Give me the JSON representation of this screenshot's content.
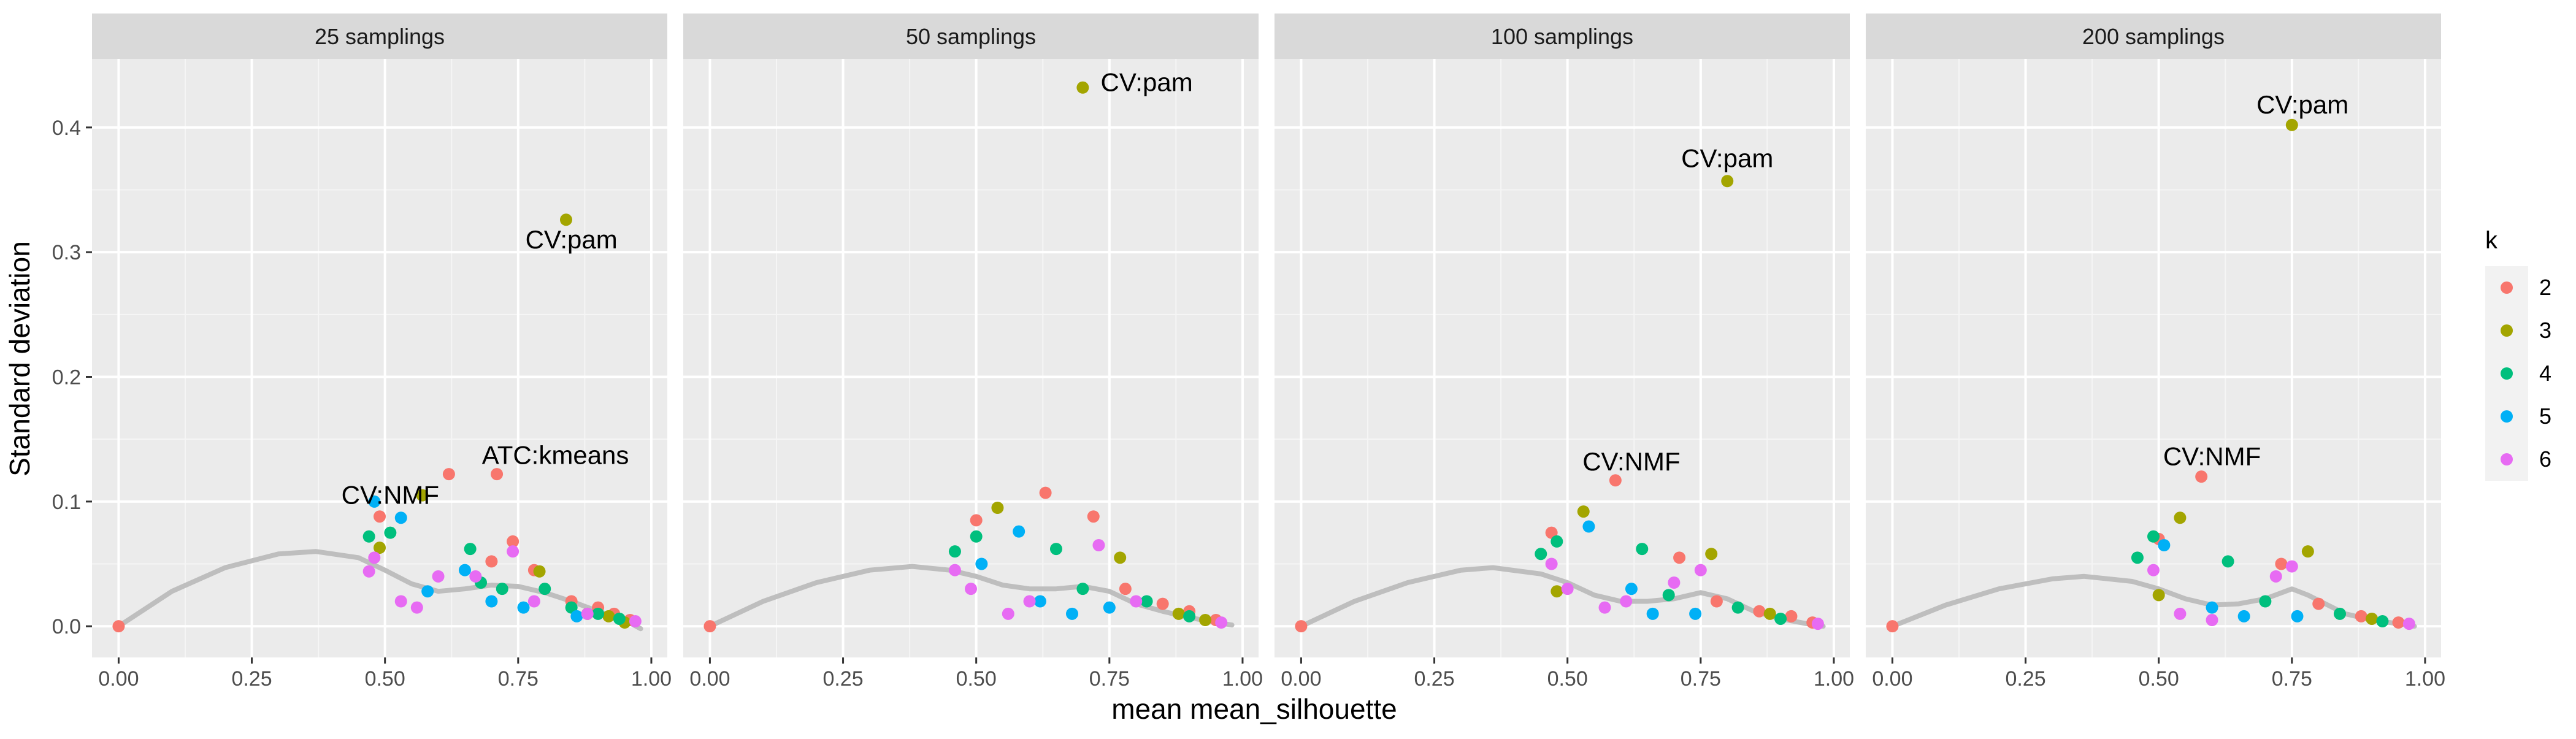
{
  "chart_data": {
    "type": "scatter",
    "xlabel": "mean mean_silhouette",
    "ylabel": "Standard deviation",
    "xlim": [
      -0.05,
      1.03
    ],
    "ylim": [
      -0.025,
      0.455
    ],
    "x_ticks": [
      0,
      0.25,
      0.5,
      0.75,
      1
    ],
    "x_tick_labels": [
      "0.00",
      "0.25",
      "0.50",
      "0.75",
      "1.00"
    ],
    "y_ticks": [
      0,
      0.1,
      0.2,
      0.3,
      0.4
    ],
    "y_tick_labels": [
      "0.0",
      "0.1",
      "0.2",
      "0.3",
      "0.4"
    ],
    "grid": true,
    "legend": {
      "title": "k",
      "placement": "right",
      "entries": [
        {
          "label": "2",
          "color": "#F8766D"
        },
        {
          "label": "3",
          "color": "#A3A500"
        },
        {
          "label": "4",
          "color": "#00BF7D"
        },
        {
          "label": "5",
          "color": "#00B0F6"
        },
        {
          "label": "6",
          "color": "#E76BF3"
        }
      ]
    },
    "smooth_color": "#BEBEBE",
    "panels": [
      {
        "title": "25 samplings",
        "annotations": [
          {
            "text": "CV:pam",
            "x": 0.85,
            "y": 0.31
          },
          {
            "text": "ATC:kmeans",
            "x": 0.82,
            "y": 0.137
          },
          {
            "text": "CV:NMF",
            "x": 0.51,
            "y": 0.105
          }
        ],
        "smooth": [
          [
            0,
            0
          ],
          [
            0.1,
            0.028
          ],
          [
            0.2,
            0.047
          ],
          [
            0.3,
            0.058
          ],
          [
            0.37,
            0.06
          ],
          [
            0.45,
            0.055
          ],
          [
            0.5,
            0.045
          ],
          [
            0.55,
            0.034
          ],
          [
            0.6,
            0.028
          ],
          [
            0.65,
            0.03
          ],
          [
            0.7,
            0.033
          ],
          [
            0.75,
            0.032
          ],
          [
            0.8,
            0.027
          ],
          [
            0.85,
            0.02
          ],
          [
            0.9,
            0.012
          ],
          [
            0.95,
            0.005
          ],
          [
            0.98,
            -0.002
          ]
        ],
        "points": [
          {
            "x": 0.0,
            "y": 0.0,
            "k": 2
          },
          {
            "x": 0.49,
            "y": 0.088,
            "k": 2
          },
          {
            "x": 0.62,
            "y": 0.122,
            "k": 2
          },
          {
            "x": 0.71,
            "y": 0.122,
            "k": 2
          },
          {
            "x": 0.74,
            "y": 0.068,
            "k": 2
          },
          {
            "x": 0.7,
            "y": 0.052,
            "k": 2
          },
          {
            "x": 0.78,
            "y": 0.045,
            "k": 2
          },
          {
            "x": 0.85,
            "y": 0.02,
            "k": 2
          },
          {
            "x": 0.9,
            "y": 0.015,
            "k": 2
          },
          {
            "x": 0.93,
            "y": 0.01,
            "k": 2
          },
          {
            "x": 0.96,
            "y": 0.005,
            "k": 2
          },
          {
            "x": 0.84,
            "y": 0.326,
            "k": 3
          },
          {
            "x": 0.49,
            "y": 0.063,
            "k": 3
          },
          {
            "x": 0.57,
            "y": 0.105,
            "k": 3
          },
          {
            "x": 0.79,
            "y": 0.044,
            "k": 3
          },
          {
            "x": 0.88,
            "y": 0.01,
            "k": 3
          },
          {
            "x": 0.92,
            "y": 0.008,
            "k": 3
          },
          {
            "x": 0.95,
            "y": 0.003,
            "k": 3
          },
          {
            "x": 0.47,
            "y": 0.072,
            "k": 4
          },
          {
            "x": 0.51,
            "y": 0.075,
            "k": 4
          },
          {
            "x": 0.66,
            "y": 0.062,
            "k": 4
          },
          {
            "x": 0.68,
            "y": 0.035,
            "k": 4
          },
          {
            "x": 0.72,
            "y": 0.03,
            "k": 4
          },
          {
            "x": 0.8,
            "y": 0.03,
            "k": 4
          },
          {
            "x": 0.85,
            "y": 0.015,
            "k": 4
          },
          {
            "x": 0.9,
            "y": 0.01,
            "k": 4
          },
          {
            "x": 0.94,
            "y": 0.006,
            "k": 4
          },
          {
            "x": 0.48,
            "y": 0.1,
            "k": 5
          },
          {
            "x": 0.53,
            "y": 0.087,
            "k": 5
          },
          {
            "x": 0.58,
            "y": 0.028,
            "k": 5
          },
          {
            "x": 0.65,
            "y": 0.045,
            "k": 5
          },
          {
            "x": 0.7,
            "y": 0.02,
            "k": 5
          },
          {
            "x": 0.76,
            "y": 0.015,
            "k": 5
          },
          {
            "x": 0.86,
            "y": 0.008,
            "k": 5
          },
          {
            "x": 0.47,
            "y": 0.044,
            "k": 6
          },
          {
            "x": 0.48,
            "y": 0.055,
            "k": 6
          },
          {
            "x": 0.53,
            "y": 0.02,
            "k": 6
          },
          {
            "x": 0.56,
            "y": 0.015,
            "k": 6
          },
          {
            "x": 0.6,
            "y": 0.04,
            "k": 6
          },
          {
            "x": 0.67,
            "y": 0.04,
            "k": 6
          },
          {
            "x": 0.74,
            "y": 0.06,
            "k": 6
          },
          {
            "x": 0.78,
            "y": 0.02,
            "k": 6
          },
          {
            "x": 0.88,
            "y": 0.01,
            "k": 6
          },
          {
            "x": 0.97,
            "y": 0.004,
            "k": 6
          }
        ]
      },
      {
        "title": "50 samplings",
        "annotations": [
          {
            "text": "CV:pam",
            "x": 0.82,
            "y": 0.436
          }
        ],
        "smooth": [
          [
            0,
            0
          ],
          [
            0.1,
            0.02
          ],
          [
            0.2,
            0.035
          ],
          [
            0.3,
            0.045
          ],
          [
            0.38,
            0.048
          ],
          [
            0.45,
            0.045
          ],
          [
            0.5,
            0.04
          ],
          [
            0.55,
            0.033
          ],
          [
            0.6,
            0.03
          ],
          [
            0.65,
            0.03
          ],
          [
            0.7,
            0.032
          ],
          [
            0.75,
            0.028
          ],
          [
            0.8,
            0.018
          ],
          [
            0.85,
            0.012
          ],
          [
            0.9,
            0.007
          ],
          [
            0.95,
            0.003
          ],
          [
            0.98,
            0.001
          ]
        ],
        "points": [
          {
            "x": 0.0,
            "y": 0.0,
            "k": 2
          },
          {
            "x": 0.5,
            "y": 0.085,
            "k": 2
          },
          {
            "x": 0.63,
            "y": 0.107,
            "k": 2
          },
          {
            "x": 0.72,
            "y": 0.088,
            "k": 2
          },
          {
            "x": 0.78,
            "y": 0.03,
            "k": 2
          },
          {
            "x": 0.85,
            "y": 0.018,
            "k": 2
          },
          {
            "x": 0.9,
            "y": 0.012,
            "k": 2
          },
          {
            "x": 0.95,
            "y": 0.005,
            "k": 2
          },
          {
            "x": 0.7,
            "y": 0.432,
            "k": 3
          },
          {
            "x": 0.54,
            "y": 0.095,
            "k": 3
          },
          {
            "x": 0.77,
            "y": 0.055,
            "k": 3
          },
          {
            "x": 0.88,
            "y": 0.01,
            "k": 3
          },
          {
            "x": 0.93,
            "y": 0.005,
            "k": 3
          },
          {
            "x": 0.46,
            "y": 0.06,
            "k": 4
          },
          {
            "x": 0.5,
            "y": 0.072,
            "k": 4
          },
          {
            "x": 0.65,
            "y": 0.062,
            "k": 4
          },
          {
            "x": 0.7,
            "y": 0.03,
            "k": 4
          },
          {
            "x": 0.82,
            "y": 0.02,
            "k": 4
          },
          {
            "x": 0.9,
            "y": 0.008,
            "k": 4
          },
          {
            "x": 0.51,
            "y": 0.05,
            "k": 5
          },
          {
            "x": 0.58,
            "y": 0.076,
            "k": 5
          },
          {
            "x": 0.62,
            "y": 0.02,
            "k": 5
          },
          {
            "x": 0.68,
            "y": 0.01,
            "k": 5
          },
          {
            "x": 0.75,
            "y": 0.015,
            "k": 5
          },
          {
            "x": 0.46,
            "y": 0.045,
            "k": 6
          },
          {
            "x": 0.49,
            "y": 0.03,
            "k": 6
          },
          {
            "x": 0.56,
            "y": 0.01,
            "k": 6
          },
          {
            "x": 0.6,
            "y": 0.02,
            "k": 6
          },
          {
            "x": 0.73,
            "y": 0.065,
            "k": 6
          },
          {
            "x": 0.8,
            "y": 0.02,
            "k": 6
          },
          {
            "x": 0.96,
            "y": 0.003,
            "k": 6
          }
        ]
      },
      {
        "title": "100 samplings",
        "annotations": [
          {
            "text": "CV:pam",
            "x": 0.8,
            "y": 0.375
          },
          {
            "text": "CV:NMF",
            "x": 0.62,
            "y": 0.132
          }
        ],
        "smooth": [
          [
            0,
            0
          ],
          [
            0.1,
            0.02
          ],
          [
            0.2,
            0.035
          ],
          [
            0.3,
            0.045
          ],
          [
            0.36,
            0.047
          ],
          [
            0.45,
            0.042
          ],
          [
            0.5,
            0.035
          ],
          [
            0.55,
            0.025
          ],
          [
            0.6,
            0.02
          ],
          [
            0.65,
            0.02
          ],
          [
            0.7,
            0.022
          ],
          [
            0.75,
            0.027
          ],
          [
            0.8,
            0.022
          ],
          [
            0.85,
            0.012
          ],
          [
            0.9,
            0.006
          ],
          [
            0.95,
            0.002
          ],
          [
            0.98,
            0.0
          ]
        ],
        "points": [
          {
            "x": 0.0,
            "y": 0.0,
            "k": 2
          },
          {
            "x": 0.47,
            "y": 0.075,
            "k": 2
          },
          {
            "x": 0.59,
            "y": 0.117,
            "k": 2
          },
          {
            "x": 0.71,
            "y": 0.055,
            "k": 2
          },
          {
            "x": 0.78,
            "y": 0.02,
            "k": 2
          },
          {
            "x": 0.86,
            "y": 0.012,
            "k": 2
          },
          {
            "x": 0.92,
            "y": 0.008,
            "k": 2
          },
          {
            "x": 0.96,
            "y": 0.003,
            "k": 2
          },
          {
            "x": 0.8,
            "y": 0.357,
            "k": 3
          },
          {
            "x": 0.53,
            "y": 0.092,
            "k": 3
          },
          {
            "x": 0.77,
            "y": 0.058,
            "k": 3
          },
          {
            "x": 0.48,
            "y": 0.028,
            "k": 3
          },
          {
            "x": 0.88,
            "y": 0.01,
            "k": 3
          },
          {
            "x": 0.45,
            "y": 0.058,
            "k": 4
          },
          {
            "x": 0.48,
            "y": 0.068,
            "k": 4
          },
          {
            "x": 0.64,
            "y": 0.062,
            "k": 4
          },
          {
            "x": 0.69,
            "y": 0.025,
            "k": 4
          },
          {
            "x": 0.82,
            "y": 0.015,
            "k": 4
          },
          {
            "x": 0.9,
            "y": 0.006,
            "k": 4
          },
          {
            "x": 0.54,
            "y": 0.08,
            "k": 5
          },
          {
            "x": 0.62,
            "y": 0.03,
            "k": 5
          },
          {
            "x": 0.66,
            "y": 0.01,
            "k": 5
          },
          {
            "x": 0.74,
            "y": 0.01,
            "k": 5
          },
          {
            "x": 0.47,
            "y": 0.05,
            "k": 6
          },
          {
            "x": 0.5,
            "y": 0.03,
            "k": 6
          },
          {
            "x": 0.57,
            "y": 0.015,
            "k": 6
          },
          {
            "x": 0.61,
            "y": 0.02,
            "k": 6
          },
          {
            "x": 0.7,
            "y": 0.035,
            "k": 6
          },
          {
            "x": 0.75,
            "y": 0.045,
            "k": 6
          },
          {
            "x": 0.97,
            "y": 0.002,
            "k": 6
          }
        ]
      },
      {
        "title": "200 samplings",
        "annotations": [
          {
            "text": "CV:pam",
            "x": 0.77,
            "y": 0.418
          },
          {
            "text": "CV:NMF",
            "x": 0.6,
            "y": 0.136
          }
        ],
        "smooth": [
          [
            0,
            0
          ],
          [
            0.1,
            0.017
          ],
          [
            0.2,
            0.03
          ],
          [
            0.3,
            0.038
          ],
          [
            0.36,
            0.04
          ],
          [
            0.45,
            0.036
          ],
          [
            0.5,
            0.03
          ],
          [
            0.55,
            0.022
          ],
          [
            0.6,
            0.017
          ],
          [
            0.65,
            0.018
          ],
          [
            0.7,
            0.022
          ],
          [
            0.75,
            0.03
          ],
          [
            0.78,
            0.025
          ],
          [
            0.85,
            0.01
          ],
          [
            0.9,
            0.005
          ],
          [
            0.95,
            0.002
          ],
          [
            0.98,
            0.0
          ]
        ],
        "points": [
          {
            "x": 0.0,
            "y": 0.0,
            "k": 2
          },
          {
            "x": 0.5,
            "y": 0.07,
            "k": 2
          },
          {
            "x": 0.58,
            "y": 0.12,
            "k": 2
          },
          {
            "x": 0.73,
            "y": 0.05,
            "k": 2
          },
          {
            "x": 0.8,
            "y": 0.018,
            "k": 2
          },
          {
            "x": 0.88,
            "y": 0.008,
            "k": 2
          },
          {
            "x": 0.95,
            "y": 0.003,
            "k": 2
          },
          {
            "x": 0.75,
            "y": 0.402,
            "k": 3
          },
          {
            "x": 0.54,
            "y": 0.087,
            "k": 3
          },
          {
            "x": 0.78,
            "y": 0.06,
            "k": 3
          },
          {
            "x": 0.5,
            "y": 0.025,
            "k": 3
          },
          {
            "x": 0.9,
            "y": 0.006,
            "k": 3
          },
          {
            "x": 0.46,
            "y": 0.055,
            "k": 4
          },
          {
            "x": 0.49,
            "y": 0.072,
            "k": 4
          },
          {
            "x": 0.63,
            "y": 0.052,
            "k": 4
          },
          {
            "x": 0.7,
            "y": 0.02,
            "k": 4
          },
          {
            "x": 0.84,
            "y": 0.01,
            "k": 4
          },
          {
            "x": 0.92,
            "y": 0.004,
            "k": 4
          },
          {
            "x": 0.51,
            "y": 0.065,
            "k": 5
          },
          {
            "x": 0.6,
            "y": 0.015,
            "k": 5
          },
          {
            "x": 0.66,
            "y": 0.008,
            "k": 5
          },
          {
            "x": 0.76,
            "y": 0.008,
            "k": 5
          },
          {
            "x": 0.49,
            "y": 0.045,
            "k": 6
          },
          {
            "x": 0.54,
            "y": 0.01,
            "k": 6
          },
          {
            "x": 0.6,
            "y": 0.005,
            "k": 6
          },
          {
            "x": 0.72,
            "y": 0.04,
            "k": 6
          },
          {
            "x": 0.75,
            "y": 0.048,
            "k": 6
          },
          {
            "x": 0.97,
            "y": 0.002,
            "k": 6
          }
        ]
      }
    ]
  }
}
